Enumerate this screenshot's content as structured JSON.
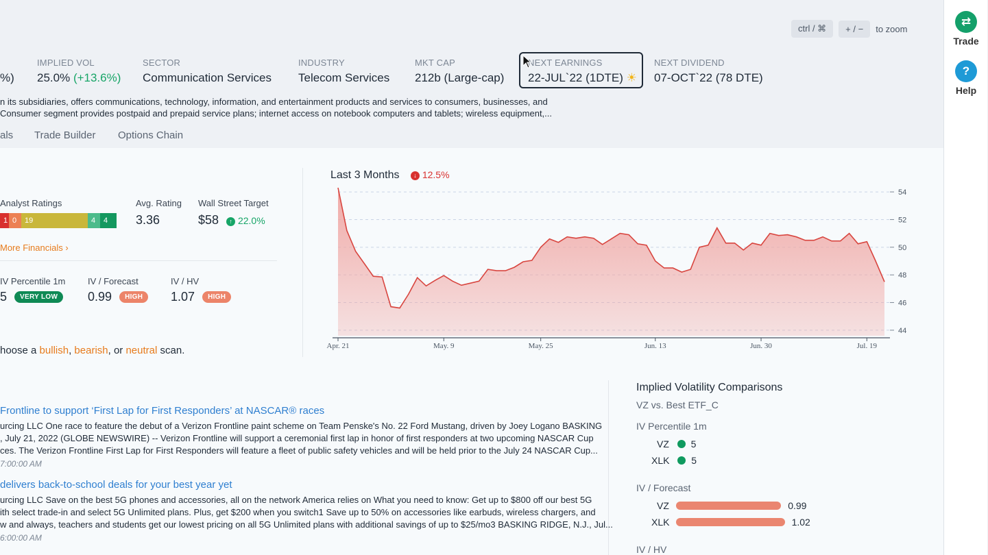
{
  "zoom_hint": {
    "key1": "ctrl / ⌘",
    "key2": "+ / −",
    "text": "to zoom"
  },
  "rail": {
    "trade": {
      "label": "Trade",
      "color": "#14a06a",
      "icon": "swap-arrows-icon"
    },
    "help": {
      "label": "Help",
      "color": "#1e9ad6",
      "icon": "question-icon"
    }
  },
  "stats": {
    "partial_prev": "%)",
    "implied_vol": {
      "label": "IMPLIED VOL",
      "value": "25.0%",
      "change": "(+13.6%)"
    },
    "sector": {
      "label": "SECTOR",
      "value": "Communication Services"
    },
    "industry": {
      "label": "INDUSTRY",
      "value": "Telecom Services"
    },
    "mkt_cap": {
      "label": "MKT CAP",
      "value": "212b (Large-cap)"
    },
    "next_earnings": {
      "label": "NEXT EARNINGS",
      "value": "22-JUL`22 (1DTE)",
      "icon": "sun-icon"
    },
    "next_dividend": {
      "label": "NEXT DIVIDEND",
      "value": "07-OCT`22 (78 DTE)"
    }
  },
  "description": {
    "line1": "n its subsidiaries, offers communications, technology, information, and entertainment products and services to consumers, businesses, and",
    "line2": "Consumer segment provides postpaid and prepaid service plans; internet access on notebook computers and tablets; wireless equipment,..."
  },
  "tabs": [
    "als",
    "Trade Builder",
    "Options Chain"
  ],
  "analyst": {
    "label": "Analyst Ratings",
    "segments": [
      "1",
      "0",
      "19",
      "",
      "4",
      "4"
    ],
    "avg_label": "Avg. Rating",
    "avg_value": "3.36",
    "target_label": "Wall Street Target",
    "target_value": "$58",
    "target_change": "22.0%",
    "more_link": "More Financials ›"
  },
  "iv": {
    "pct_label": "IV Percentile 1m",
    "pct_value": "5",
    "pct_badge": "VERY LOW",
    "forecast_label": "IV / Forecast",
    "forecast_value": "0.99",
    "forecast_badge": "HIGH",
    "hv_label": "IV / HV",
    "hv_value": "1.07",
    "hv_badge": "HIGH"
  },
  "scan": {
    "prefix": "hoose a ",
    "bullish": "bullish",
    "sep1": ", ",
    "bearish": "bearish",
    "sep2": ", or ",
    "neutral": "neutral",
    "suffix": " scan."
  },
  "chart_data": {
    "type": "area",
    "title": "Last 3 Months",
    "change": "12.5%",
    "x_ticks": [
      "Apr. 21",
      "May. 9",
      "May. 25",
      "Jun. 13",
      "Jun. 30",
      "Jul. 19"
    ],
    "x_tick_index": [
      0,
      12,
      23,
      36,
      48,
      60
    ],
    "y_ticks": [
      "54",
      "52",
      "50",
      "48",
      "46",
      "44"
    ],
    "ylim": [
      43.6,
      54.4
    ],
    "values": [
      54.3,
      51.2,
      49.7,
      48.8,
      47.9,
      47.85,
      45.7,
      45.6,
      46.6,
      47.8,
      47.2,
      47.6,
      47.95,
      47.55,
      47.25,
      47.4,
      47.55,
      48.4,
      48.3,
      48.3,
      48.55,
      48.95,
      49.05,
      50.0,
      50.6,
      50.35,
      50.75,
      50.65,
      50.75,
      50.65,
      50.2,
      50.6,
      51.0,
      50.9,
      50.25,
      50.15,
      49.0,
      48.5,
      48.5,
      48.2,
      48.4,
      50.0,
      50.15,
      51.4,
      50.3,
      50.3,
      49.8,
      50.3,
      50.15,
      51.0,
      50.85,
      50.9,
      50.75,
      50.5,
      50.5,
      50.75,
      50.45,
      50.45,
      51.0,
      50.25,
      50.4,
      49.0,
      47.5
    ],
    "line_color": "#d8453f",
    "fill_color": "#f0a5a2",
    "grid": true
  },
  "news": [
    {
      "title": "Frontline to support ‘First Lap for First Responders’ at NASCAR® races",
      "line1": "urcing LLC One race to feature the debut of a Verizon Frontline paint scheme on Team Penske's No. 22 Ford Mustang, driven by Joey Logano BASKING",
      "line2": ", July 21, 2022 (GLOBE NEWSWIRE) -- Verizon Frontline will support a ceremonial first lap in honor of first responders at two upcoming NASCAR Cup",
      "line3": "ces. The Verizon Frontline First Lap for First Responders will feature a fleet of public safety vehicles and will be held prior to the July 24 NASCAR Cup...",
      "time": "7:00:00 AM"
    },
    {
      "title": "delivers back-to-school deals for your best year yet",
      "line1": "urcing LLC Save on the best 5G phones and accessories, all on the network America relies on What you need to know: Get up to $800 off our best 5G",
      "line2": "ith select trade-in and select 5G Unlimited plans. Plus, get $200 when you switch1 Save up to 50% on accessories like earbuds, wireless chargers, and",
      "line3": "w and always, teachers and students get our lowest pricing on all 5G Unlimited plans with additional savings of up to $25/mo3 BASKING RIDGE, N.J., Jul...",
      "time": "6:00:00 AM"
    }
  ],
  "ivc": {
    "title": "Implied Volatility Comparisons",
    "subtitle": "VZ vs. Best ETF_C",
    "pct_label": "IV Percentile 1m",
    "pct_rows": [
      {
        "sym": "VZ",
        "value": "5"
      },
      {
        "sym": "XLK",
        "value": "5"
      }
    ],
    "forecast_label": "IV / Forecast",
    "forecast_rows": [
      {
        "sym": "VZ",
        "value": "0.99",
        "num": 0.99
      },
      {
        "sym": "XLK",
        "value": "1.02",
        "num": 1.02
      }
    ],
    "hv_label": "IV / HV"
  }
}
